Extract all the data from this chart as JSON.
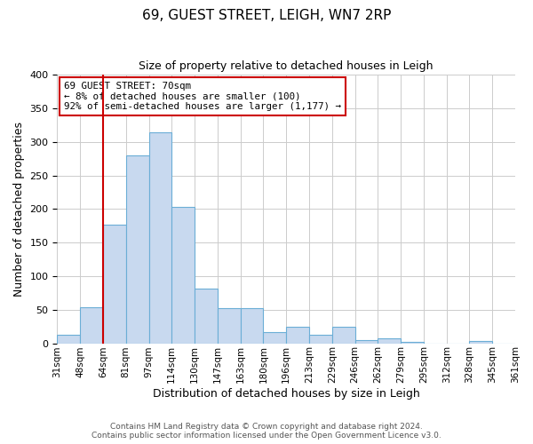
{
  "title": "69, GUEST STREET, LEIGH, WN7 2RP",
  "subtitle": "Size of property relative to detached houses in Leigh",
  "xlabel": "Distribution of detached houses by size in Leigh",
  "ylabel": "Number of detached properties",
  "bar_color": "#c8d9ef",
  "bar_edge_color": "#6baed6",
  "background_color": "#ffffff",
  "grid_color": "#cccccc",
  "annotation_box_color": "#ffffff",
  "annotation_box_edge": "#cc0000",
  "vline_color": "#cc0000",
  "vline_x": 2,
  "tick_labels": [
    "31sqm",
    "48sqm",
    "64sqm",
    "81sqm",
    "97sqm",
    "114sqm",
    "130sqm",
    "147sqm",
    "163sqm",
    "180sqm",
    "196sqm",
    "213sqm",
    "229sqm",
    "246sqm",
    "262sqm",
    "279sqm",
    "295sqm",
    "312sqm",
    "328sqm",
    "345sqm",
    "361sqm"
  ],
  "values": [
    13,
    54,
    177,
    280,
    315,
    203,
    82,
    52,
    52,
    17,
    25,
    12,
    25,
    5,
    7,
    2,
    0,
    0,
    3,
    0
  ],
  "annotation_lines": [
    "69 GUEST STREET: 70sqm",
    "← 8% of detached houses are smaller (100)",
    "92% of semi-detached houses are larger (1,177) →"
  ],
  "footer_lines": [
    "Contains HM Land Registry data © Crown copyright and database right 2024.",
    "Contains public sector information licensed under the Open Government Licence v3.0."
  ],
  "ylim_min": 0,
  "ylim_max": 400,
  "yticks": [
    0,
    50,
    100,
    150,
    200,
    250,
    300,
    350,
    400
  ]
}
